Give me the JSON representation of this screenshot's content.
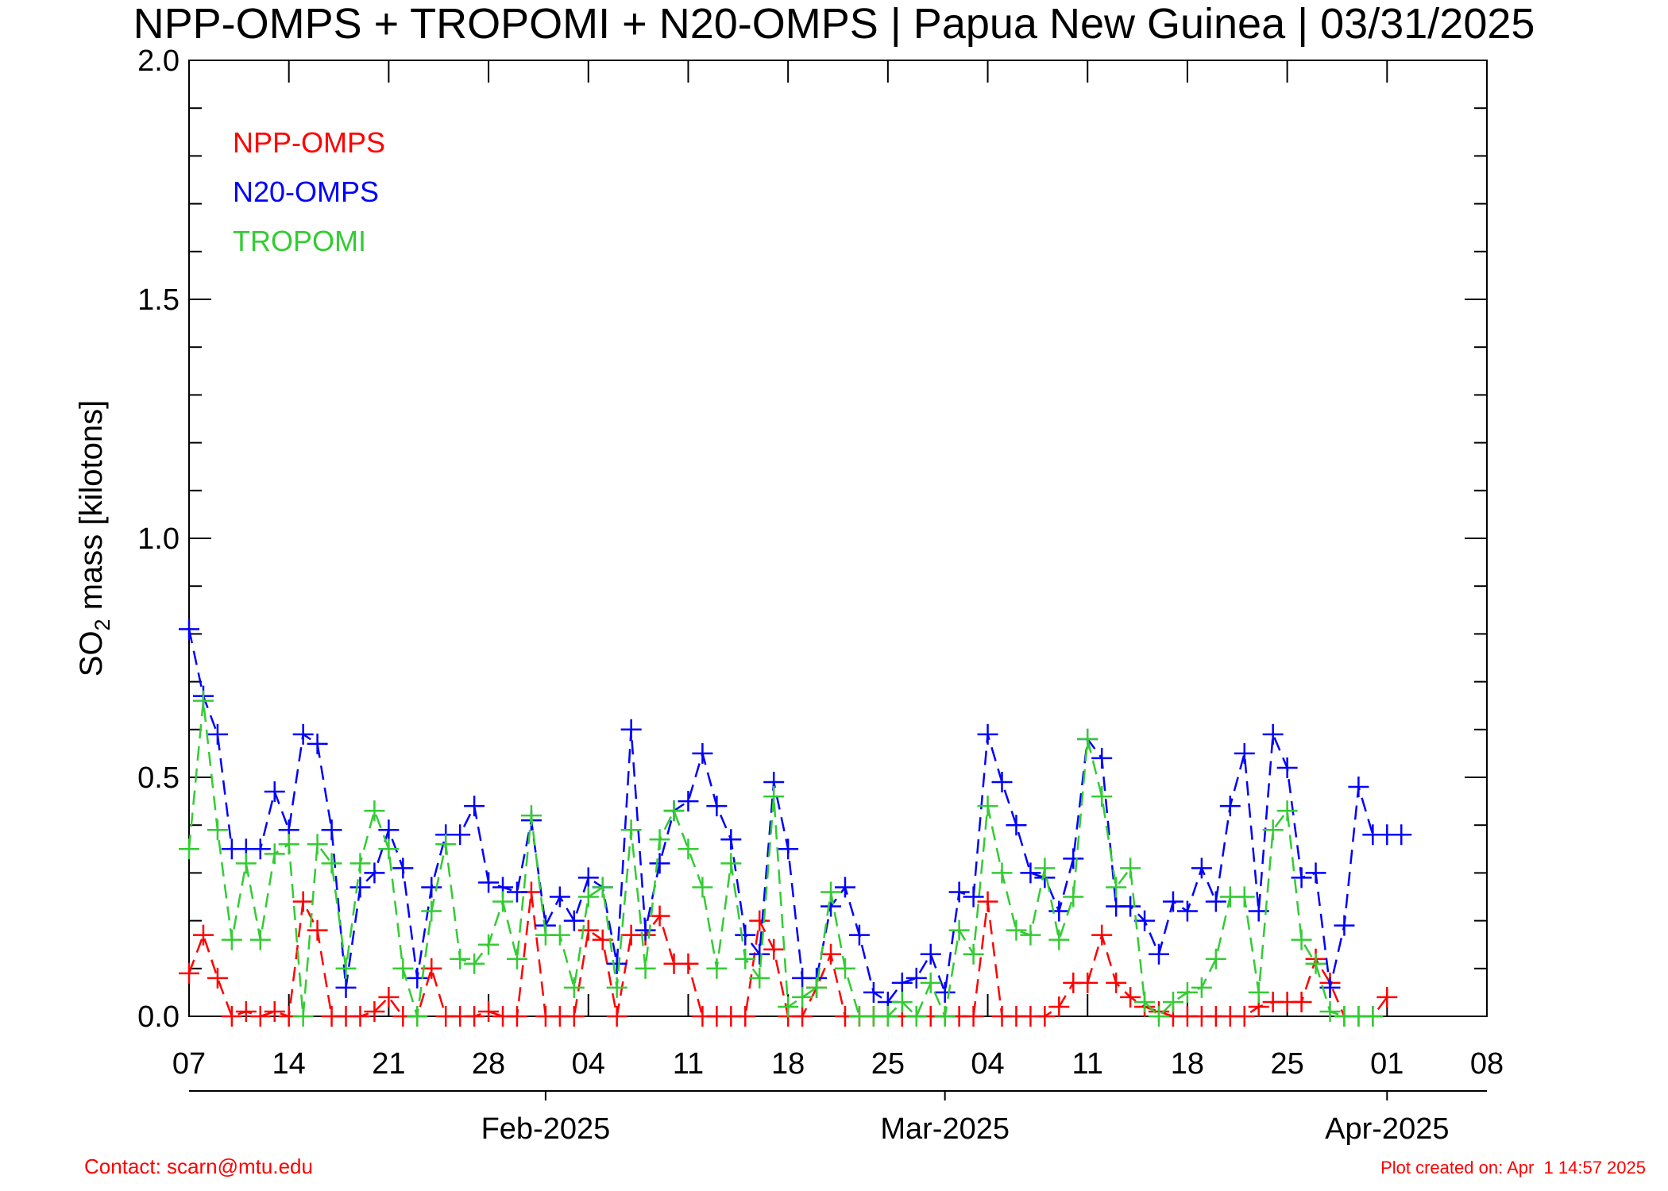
{
  "chart_data": {
    "type": "line",
    "title": "NPP-OMPS + TROPOMI + N20-OMPS | Papua New Guinea | 03/31/2025",
    "ylabel_main": "SO",
    "ylabel_sub": "2",
    "ylabel_rest": " mass [kilotons]",
    "ylim": [
      0,
      2.0
    ],
    "yticks": [
      "0.0",
      "0.5",
      "1.0",
      "1.5",
      "2.0"
    ],
    "xlim": [
      0,
      91
    ],
    "xticks": [
      "07",
      "14",
      "21",
      "28",
      "04",
      "11",
      "18",
      "25",
      "04",
      "11",
      "18",
      "25",
      "01",
      "08"
    ],
    "month_labels": [
      {
        "label": "Feb-2025",
        "day": 25
      },
      {
        "label": "Mar-2025",
        "day": 53
      },
      {
        "label": "Apr-2025",
        "day": 84
      }
    ],
    "legend": {
      "position": "top-left"
    },
    "series": [
      {
        "name": "NPP-OMPS",
        "color": "#ff0000",
        "x": [
          0,
          1,
          2,
          3,
          4,
          5,
          6,
          7,
          8,
          9,
          10,
          11,
          12,
          13,
          14,
          15,
          16,
          17,
          18,
          19,
          20,
          21,
          22,
          23,
          24,
          25,
          26,
          27,
          28,
          29,
          30,
          31,
          32,
          33,
          34,
          35,
          36,
          37,
          38,
          39,
          40,
          41,
          42,
          43,
          44,
          45,
          46,
          47,
          48,
          49,
          50,
          51,
          52,
          53,
          54,
          55,
          56,
          57,
          58,
          59,
          60,
          61,
          62,
          63,
          64,
          65,
          66,
          67,
          68,
          69,
          70,
          71,
          72,
          73,
          74,
          75,
          76,
          77,
          78,
          79,
          80,
          81,
          82,
          83,
          84
        ],
        "y": [
          0.09,
          0.17,
          0.08,
          0.0,
          0.01,
          0.0,
          0.01,
          0.0,
          0.24,
          0.18,
          0.0,
          0.0,
          0.0,
          0.01,
          0.04,
          0.0,
          0.0,
          0.1,
          0.0,
          0.0,
          0.0,
          0.01,
          0.0,
          0.0,
          0.26,
          0.0,
          0.0,
          0.0,
          0.18,
          0.16,
          0.0,
          0.17,
          0.17,
          0.21,
          0.11,
          0.11,
          0.0,
          0.0,
          0.0,
          0.0,
          0.2,
          0.14,
          0.0,
          0.0,
          0.06,
          0.13,
          0.0,
          0.0,
          0.0,
          0.0,
          0.0,
          0.0,
          0.0,
          0.0,
          0.0,
          0.0,
          0.24,
          0.0,
          0.0,
          0.0,
          0.0,
          0.02,
          0.07,
          0.07,
          0.17,
          0.07,
          0.04,
          0.02,
          0.01,
          0.0,
          0.0,
          0.0,
          0.0,
          0.0,
          0.0,
          0.02,
          0.03,
          0.03,
          0.03,
          0.12,
          0.07,
          0.0,
          0.0,
          0.0,
          0.04
        ]
      },
      {
        "name": "N20-OMPS",
        "color": "#0000ff",
        "x": [
          0,
          1,
          2,
          3,
          4,
          5,
          6,
          7,
          8,
          9,
          10,
          11,
          12,
          13,
          14,
          15,
          16,
          17,
          18,
          19,
          20,
          21,
          22,
          23,
          24,
          25,
          26,
          27,
          28,
          29,
          30,
          31,
          32,
          33,
          34,
          35,
          36,
          37,
          38,
          39,
          40,
          41,
          42,
          43,
          44,
          45,
          46,
          47,
          48,
          49,
          50,
          51,
          52,
          53,
          54,
          55,
          56,
          57,
          58,
          59,
          60,
          61,
          62,
          63,
          64,
          65,
          66,
          67,
          68,
          69,
          70,
          71,
          72,
          73,
          74,
          75,
          76,
          77,
          78,
          79,
          80,
          81,
          82,
          83,
          84,
          85
        ],
        "y": [
          0.81,
          0.67,
          0.59,
          0.35,
          0.35,
          0.35,
          0.47,
          0.39,
          0.59,
          0.57,
          0.39,
          0.06,
          0.27,
          0.3,
          0.39,
          0.31,
          0.08,
          0.27,
          0.38,
          0.38,
          0.44,
          0.28,
          0.27,
          0.26,
          0.41,
          0.19,
          0.25,
          0.2,
          0.29,
          0.27,
          0.11,
          0.6,
          0.18,
          0.32,
          0.43,
          0.45,
          0.55,
          0.44,
          0.37,
          0.17,
          0.13,
          0.49,
          0.35,
          0.08,
          0.08,
          0.23,
          0.27,
          0.17,
          0.05,
          0.03,
          0.07,
          0.08,
          0.13,
          0.05,
          0.26,
          0.25,
          0.59,
          0.49,
          0.4,
          0.3,
          0.29,
          0.22,
          0.33,
          0.58,
          0.54,
          0.23,
          0.23,
          0.2,
          0.13,
          0.24,
          0.22,
          0.31,
          0.24,
          0.44,
          0.55,
          0.22,
          0.59,
          0.52,
          0.29,
          0.3,
          0.06,
          0.19,
          0.48,
          0.38,
          0.38,
          0.38
        ]
      },
      {
        "name": "TROPOMI",
        "color": "#33cc33",
        "x": [
          0,
          1,
          2,
          3,
          4,
          5,
          6,
          7,
          8,
          9,
          10,
          11,
          12,
          13,
          14,
          15,
          16,
          17,
          18,
          19,
          20,
          21,
          22,
          23,
          24,
          25,
          26,
          27,
          28,
          29,
          30,
          31,
          32,
          33,
          34,
          35,
          36,
          37,
          38,
          39,
          40,
          41,
          42,
          43,
          44,
          45,
          46,
          47,
          48,
          49,
          50,
          51,
          52,
          53,
          54,
          55,
          56,
          57,
          58,
          59,
          60,
          61,
          62,
          63,
          64,
          65,
          66,
          67,
          68,
          69,
          70,
          71,
          72,
          73,
          74,
          75,
          76,
          77,
          78,
          79,
          80,
          81,
          82,
          83
        ],
        "y": [
          0.35,
          0.66,
          0.39,
          0.16,
          0.32,
          0.16,
          0.34,
          0.36,
          0.0,
          0.36,
          0.32,
          0.1,
          0.32,
          0.43,
          0.35,
          0.1,
          0.0,
          0.22,
          0.36,
          0.12,
          0.11,
          0.15,
          0.24,
          0.12,
          0.42,
          0.17,
          0.17,
          0.06,
          0.25,
          0.27,
          0.06,
          0.39,
          0.1,
          0.37,
          0.43,
          0.35,
          0.27,
          0.1,
          0.32,
          0.12,
          0.08,
          0.46,
          0.02,
          0.04,
          0.06,
          0.26,
          0.1,
          0.0,
          0.0,
          0.0,
          0.03,
          0.0,
          0.07,
          0.0,
          0.18,
          0.13,
          0.44,
          0.3,
          0.18,
          0.17,
          0.31,
          0.16,
          0.25,
          0.58,
          0.46,
          0.27,
          0.31,
          0.03,
          0.0,
          0.03,
          0.05,
          0.06,
          0.12,
          0.25,
          0.25,
          0.05,
          0.39,
          0.43,
          0.16,
          0.11,
          0.01,
          0.0,
          0.0,
          0.0
        ]
      }
    ]
  },
  "footer": {
    "contact": "Contact: scarn@mtu.edu",
    "created": "Plot created on: Apr  1 14:57 2025"
  }
}
